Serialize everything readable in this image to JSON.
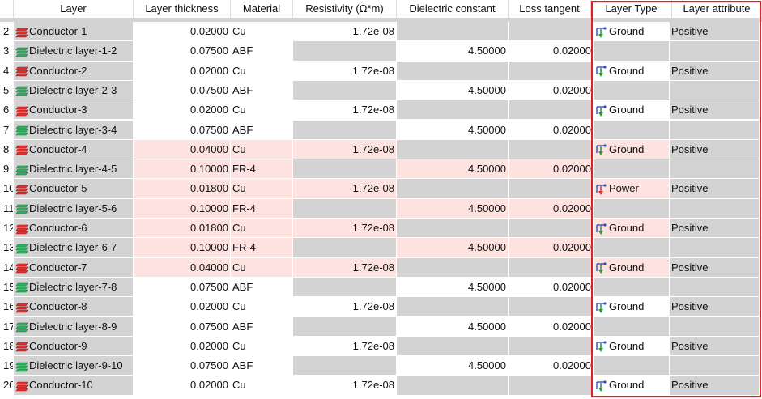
{
  "columns": [
    "Layer",
    "Layer thickness",
    "Material",
    "Resistivity (Ω*m)",
    "Dielectric constant",
    "Loss tangent",
    "Layer Type",
    "Layer attribute"
  ],
  "rows": [
    {
      "number": 2,
      "layer": "Conductor-1",
      "thickness": "0.02000",
      "material": "Cu",
      "resistivity": "1.72e-08",
      "layer_type": "Ground",
      "layer_attribute": "Positive"
    },
    {
      "number": 3,
      "layer": "Dielectric layer-1-2",
      "thickness": "0.07500",
      "material": "ABF",
      "dielectric_constant": "4.50000",
      "loss_tangent": "0.02000"
    },
    {
      "number": 4,
      "layer": "Conductor-2",
      "thickness": "0.02000",
      "material": "Cu",
      "resistivity": "1.72e-08",
      "layer_type": "Ground",
      "layer_attribute": "Positive"
    },
    {
      "number": 5,
      "layer": "Dielectric layer-2-3",
      "thickness": "0.07500",
      "material": "ABF",
      "dielectric_constant": "4.50000",
      "loss_tangent": "0.02000"
    },
    {
      "number": 6,
      "layer": "Conductor-3",
      "thickness": "0.02000",
      "material": "Cu",
      "resistivity": "1.72e-08",
      "layer_type": "Ground",
      "layer_attribute": "Positive"
    },
    {
      "number": 7,
      "layer": "Dielectric layer-3-4",
      "thickness": "0.07500",
      "material": "ABF",
      "dielectric_constant": "4.50000",
      "loss_tangent": "0.02000"
    },
    {
      "number": 8,
      "layer": "Conductor-4",
      "thickness": "0.04000",
      "material": "Cu",
      "resistivity": "1.72e-08",
      "layer_type": "Ground",
      "layer_attribute": "Positive"
    },
    {
      "number": 9,
      "layer": "Dielectric layer-4-5",
      "thickness": "0.10000",
      "material": "FR-4",
      "dielectric_constant": "4.50000",
      "loss_tangent": "0.02000"
    },
    {
      "number": 10,
      "layer": "Conductor-5",
      "thickness": "0.01800",
      "material": "Cu",
      "resistivity": "1.72e-08",
      "layer_type": "Power",
      "layer_attribute": "Positive"
    },
    {
      "number": 11,
      "layer": "Dielectric layer-5-6",
      "thickness": "0.10000",
      "material": "FR-4",
      "dielectric_constant": "4.50000",
      "loss_tangent": "0.02000"
    },
    {
      "number": 12,
      "layer": "Conductor-6",
      "thickness": "0.01800",
      "material": "Cu",
      "resistivity": "1.72e-08",
      "layer_type": "Ground",
      "layer_attribute": "Positive"
    },
    {
      "number": 13,
      "layer": "Dielectric layer-6-7",
      "thickness": "0.10000",
      "material": "FR-4",
      "dielectric_constant": "4.50000",
      "loss_tangent": "0.02000"
    },
    {
      "number": 14,
      "layer": "Conductor-7",
      "thickness": "0.04000",
      "material": "Cu",
      "resistivity": "1.72e-08",
      "layer_type": "Ground",
      "layer_attribute": "Positive"
    },
    {
      "number": 15,
      "layer": "Dielectric layer-7-8",
      "thickness": "0.07500",
      "material": "ABF",
      "dielectric_constant": "4.50000",
      "loss_tangent": "0.02000"
    },
    {
      "number": 16,
      "layer": "Conductor-8",
      "thickness": "0.02000",
      "material": "Cu",
      "resistivity": "1.72e-08",
      "layer_type": "Ground",
      "layer_attribute": "Positive"
    },
    {
      "number": 17,
      "layer": "Dielectric layer-8-9",
      "thickness": "0.07500",
      "material": "ABF",
      "dielectric_constant": "4.50000",
      "loss_tangent": "0.02000"
    },
    {
      "number": 18,
      "layer": "Conductor-9",
      "thickness": "0.02000",
      "material": "Cu",
      "resistivity": "1.72e-08",
      "layer_type": "Ground",
      "layer_attribute": "Positive"
    },
    {
      "number": 19,
      "layer": "Dielectric layer-9-10",
      "thickness": "0.07500",
      "material": "ABF",
      "dielectric_constant": "4.50000",
      "loss_tangent": "0.02000"
    },
    {
      "number": 20,
      "layer": "Conductor-10",
      "thickness": "0.02000",
      "material": "Cu",
      "resistivity": "1.72e-08",
      "layer_type": "Ground",
      "layer_attribute": "Positive"
    }
  ]
}
